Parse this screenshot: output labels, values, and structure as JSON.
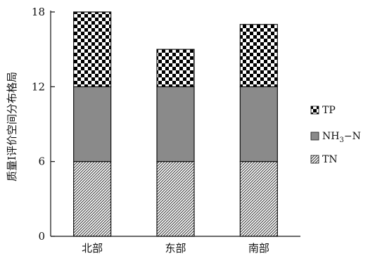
{
  "chart_data": {
    "type": "bar",
    "stacked": true,
    "categories": [
      "北部",
      "东部",
      "南部"
    ],
    "series": [
      {
        "name": "TN",
        "values": [
          6,
          6,
          6
        ],
        "pattern": "diagonal-hatch"
      },
      {
        "name": "NH3-N",
        "values": [
          6,
          6,
          6
        ],
        "pattern": "gray-fill"
      },
      {
        "name": "TP",
        "values": [
          6,
          3,
          5
        ],
        "pattern": "checkerboard"
      }
    ],
    "legend_labels": {
      "tp": "TP",
      "nh3_prefix": "NH",
      "nh3_sub": "3",
      "nh3_suffix": "−N",
      "tn": "TN"
    },
    "ylabel": "质量I评价空间分布格局",
    "yticks": [
      0,
      6,
      12,
      18
    ],
    "ylim": [
      0,
      18
    ],
    "legend_position": "right",
    "grid": false,
    "colors": {
      "axis": "#111111",
      "gray": "#8a8a8a",
      "hatch": "#333333",
      "checker": "#000000"
    }
  }
}
